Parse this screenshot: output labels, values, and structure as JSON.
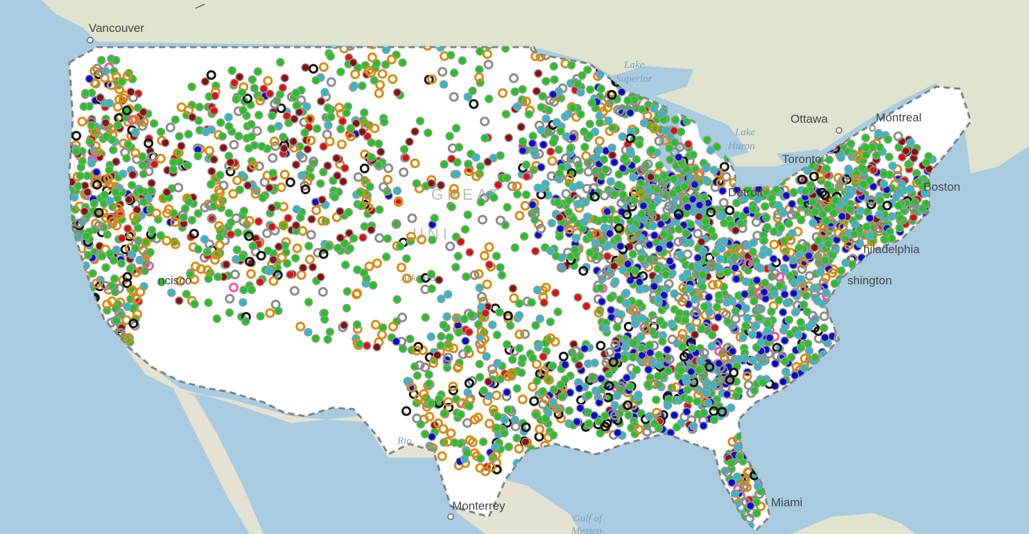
{
  "map": {
    "cities": [
      {
        "name": "Vancouver",
        "kind": "city"
      },
      {
        "name": "Ottawa",
        "kind": "city"
      },
      {
        "name": "Montreal",
        "kind": "city"
      },
      {
        "name": "Toronto",
        "kind": "city"
      },
      {
        "name": "Detroit",
        "kind": "city"
      },
      {
        "name": "Boston",
        "kind": "city"
      },
      {
        "name": "hiladelphia",
        "kind": "city"
      },
      {
        "name": "shington",
        "kind": "city"
      },
      {
        "name": "ncisco",
        "kind": "city"
      },
      {
        "name": "Miami",
        "kind": "city"
      },
      {
        "name": "Monterrey",
        "kind": "city"
      }
    ],
    "water_labels": [
      "Lake",
      "Superior",
      "Lake",
      "Huron",
      "Gulf of",
      "Mexico",
      "Arkansas",
      "Rio"
    ],
    "faint_labels": [
      "GREAT",
      "UNI"
    ],
    "colors": {
      "ocean": "#a9cbe0",
      "land": "#dfe3cf",
      "usa_fill": "#ffffff",
      "border": "#808080",
      "marker_green": "#22c422",
      "marker_cyan": "#30b8c8",
      "marker_blue": "#0a0ad0",
      "marker_darkred": "#8a1010",
      "marker_red": "#e01010",
      "marker_black": "#111111",
      "marker_orange": "#d98a10",
      "marker_gray": "#8a8a8a",
      "marker_pink": "#ff4fa0"
    },
    "marker_categories": [
      {
        "color": "#22c422",
        "style": "filled"
      },
      {
        "color": "#30b8c8",
        "style": "filled"
      },
      {
        "color": "#0a0ad0",
        "style": "filled"
      },
      {
        "color": "#8a1010",
        "style": "filled"
      },
      {
        "color": "#e01010",
        "style": "filled"
      },
      {
        "color": "#111111",
        "style": "ring"
      },
      {
        "color": "#d98a10",
        "style": "ring"
      },
      {
        "color": "#8a8a8a",
        "style": "ring"
      },
      {
        "color": "#ff4fa0",
        "style": "ring"
      }
    ]
  }
}
